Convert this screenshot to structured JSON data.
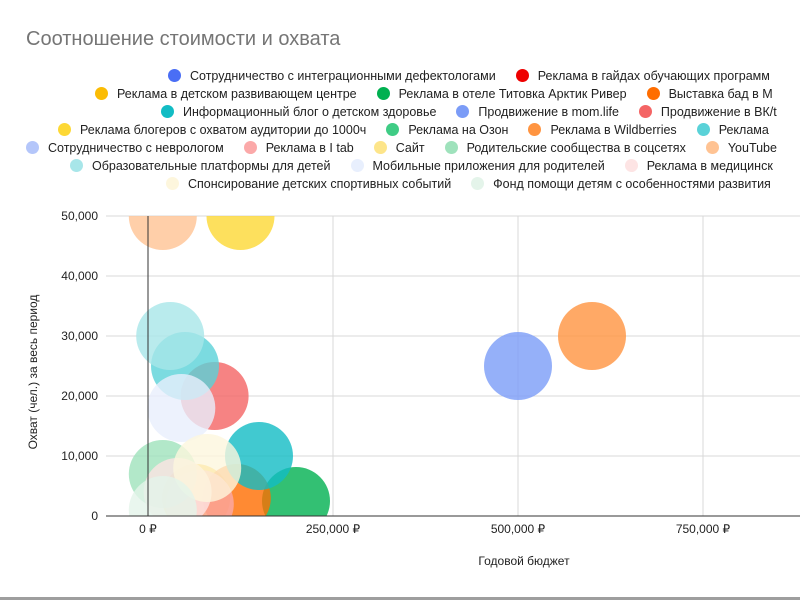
{
  "chart_data": {
    "type": "bubble",
    "title": "Соотношение стоимости и охвата",
    "xlabel": "Годовой бюджет",
    "ylabel": "Охват (чел.) за весь период",
    "xlim": [
      -60000,
      880000
    ],
    "ylim": [
      0,
      50000
    ],
    "x_ticks": [
      0,
      250000,
      500000,
      750000
    ],
    "x_tick_labels": [
      "0 ₽",
      "250,000 ₽",
      "500,000 ₽",
      "750,000 ₽"
    ],
    "y_ticks": [
      0,
      10000,
      20000,
      30000,
      40000,
      50000
    ],
    "y_tick_labels": [
      "0",
      "10,000",
      "20,000",
      "30,000",
      "40,000",
      "50,000"
    ],
    "grid": true,
    "legend_position": "top",
    "series": [
      {
        "name": "Сотрудничество с интеграционными дефектологами",
        "color": "#4a6ef5",
        "x": null,
        "y": null
      },
      {
        "name": "Реклама в гайдах обучающих программ",
        "color": "#ee0000",
        "x": null,
        "y": null
      },
      {
        "name": "Реклама в детском развивающем центре",
        "color": "#fbbc04",
        "x": 65000,
        "y": 3000
      },
      {
        "name": "Реклама в отеле Титовка Арктик Ривер",
        "color": "#00b050",
        "x": 200000,
        "y": 2500
      },
      {
        "name": "Выставка бад в М",
        "color": "#ff6d00",
        "x": 120000,
        "y": 3000
      },
      {
        "name": "Информационный блог о детском здоровье",
        "color": "#12bcc4",
        "x": 150000,
        "y": 10000
      },
      {
        "name": "Продвижение в mom.life",
        "color": "#7b9cf7",
        "x": 500000,
        "y": 25000
      },
      {
        "name": "Продвижение в ВК/t",
        "color": "#f46464",
        "x": 90000,
        "y": 20000
      },
      {
        "name": "Реклама блогеров с  охватом аудитории до 1000ч",
        "color": "#fdd835",
        "x": 125000,
        "y": 50000
      },
      {
        "name": "Реклама на Озон",
        "color": "#3fcc85",
        "x": null,
        "y": null
      },
      {
        "name": "Реклама в Wildberries",
        "color": "#ff9440",
        "x": 600000,
        "y": 30000
      },
      {
        "name": "Реклама",
        "color": "#5ad2d8",
        "x": 50000,
        "y": 25000
      },
      {
        "name": "Сотрудничество с неврологом",
        "color": "#b4c6fa",
        "x": null,
        "y": null
      },
      {
        "name": "Реклама в I tab",
        "color": "#fba9a9",
        "x": 70000,
        "y": 2000
      },
      {
        "name": "Сайт",
        "color": "#fde58a",
        "x": null,
        "y": null
      },
      {
        "name": "Родительские сообщества в соцсетях",
        "color": "#9fe2bc",
        "x": 20000,
        "y": 7000
      },
      {
        "name": "YouTube",
        "color": "#ffc393",
        "x": 20000,
        "y": 50000
      },
      {
        "name": "Образовательные платформы для детей",
        "color": "#a8e6e9",
        "x": 30000,
        "y": 30000
      },
      {
        "name": "Мобильные приложения для родителей",
        "color": "#e8effd",
        "x": 45000,
        "y": 18000
      },
      {
        "name": "Реклама в медицинск",
        "color": "#fde4e4",
        "x": 40000,
        "y": 4000
      },
      {
        "name": "Спонсирование детских спортивных событий",
        "color": "#fdf6dd",
        "x": 80000,
        "y": 8000
      },
      {
        "name": "Фонд помощи детям с особенностями развития",
        "color": "#e4f4ea",
        "x": 20000,
        "y": 1000
      }
    ]
  }
}
